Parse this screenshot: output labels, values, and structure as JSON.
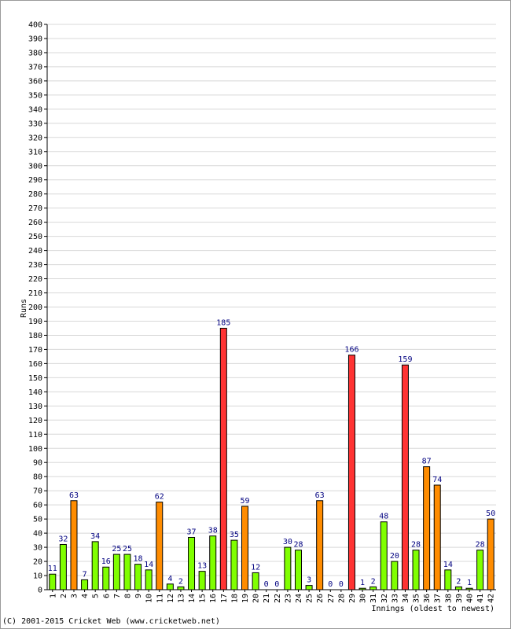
{
  "copyright": "(C) 2001-2015 Cricket Web (www.cricketweb.net)",
  "chart_data": {
    "type": "bar",
    "title": "",
    "xlabel": "Innings (oldest to newest)",
    "ylabel": "Runs",
    "ylim": [
      0,
      400
    ],
    "ytick_step": 10,
    "grid": true,
    "colors": {
      "under50": "#80ff00",
      "fifty": "#ff8c00",
      "hundred": "#ff3333",
      "edge": "#000000",
      "grid": "#d8d8d8",
      "label": "#000080"
    },
    "categories": [
      "1",
      "2",
      "3",
      "4",
      "5",
      "6",
      "7",
      "8",
      "9",
      "10",
      "11",
      "12",
      "13",
      "14",
      "15",
      "16",
      "17",
      "18",
      "19",
      "20",
      "21",
      "22",
      "23",
      "24",
      "25",
      "26",
      "27",
      "28",
      "29",
      "30",
      "31",
      "32",
      "33",
      "34",
      "35",
      "36",
      "37",
      "38",
      "39",
      "40",
      "41",
      "42"
    ],
    "values": [
      11,
      32,
      63,
      7,
      34,
      16,
      25,
      25,
      18,
      14,
      62,
      4,
      2,
      37,
      13,
      38,
      185,
      35,
      59,
      12,
      0,
      0,
      30,
      28,
      3,
      63,
      0,
      0,
      166,
      1,
      2,
      48,
      20,
      159,
      28,
      87,
      74,
      14,
      2,
      1,
      28,
      50
    ],
    "labels": [
      "11",
      "32",
      "63",
      "7",
      "34",
      "16",
      "25",
      "25",
      "18",
      "14",
      "62",
      "4",
      "2",
      "37",
      "13",
      "38",
      "185",
      "35",
      "59",
      "12",
      "0",
      "0",
      "30",
      "28",
      "3",
      "63",
      "0",
      "0",
      "166",
      "1",
      "2",
      "48",
      "20",
      "159",
      "28",
      "87",
      "74",
      "14",
      "2",
      "1",
      "28",
      "50"
    ]
  }
}
